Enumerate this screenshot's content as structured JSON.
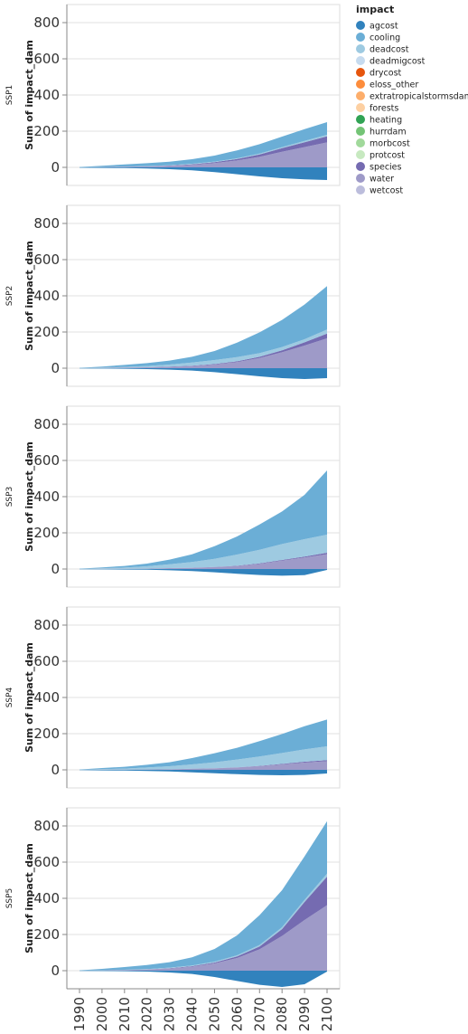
{
  "chart_data": {
    "type": "area",
    "stacked": true,
    "facet_row": "ssp",
    "x": [
      1990,
      2000,
      2010,
      2020,
      2030,
      2040,
      2050,
      2060,
      2070,
      2080,
      2090,
      2100
    ],
    "x_tick_labels": [
      "1990",
      "2000",
      "2010",
      "2020",
      "2030",
      "2040",
      "2050",
      "2060",
      "2070",
      "2080",
      "2090",
      "2100"
    ],
    "ylabel": "Sum of impact_dam",
    "ylim": [
      -100,
      900
    ],
    "y_ticks": [
      0,
      200,
      400,
      600,
      800
    ],
    "grid": true,
    "legend": {
      "title": "impact",
      "placement": "top-right",
      "entries": [
        {
          "name": "agcost",
          "color": "#3182bd"
        },
        {
          "name": "cooling",
          "color": "#6baed6"
        },
        {
          "name": "deadcost",
          "color": "#9ecae1"
        },
        {
          "name": "deadmigcost",
          "color": "#c6dbef"
        },
        {
          "name": "drycost",
          "color": "#e6550d"
        },
        {
          "name": "eloss_other",
          "color": "#fd8d3c"
        },
        {
          "name": "extratropicalstormsdam",
          "color": "#fdae6b"
        },
        {
          "name": "forests",
          "color": "#fdd0a2"
        },
        {
          "name": "heating",
          "color": "#31a354"
        },
        {
          "name": "hurrdam",
          "color": "#74c476"
        },
        {
          "name": "morbcost",
          "color": "#a1d99b"
        },
        {
          "name": "protcost",
          "color": "#c7e9c0"
        },
        {
          "name": "species",
          "color": "#756bb1"
        },
        {
          "name": "water",
          "color": "#9e9ac8"
        },
        {
          "name": "wetcost",
          "color": "#bcbddc"
        }
      ]
    },
    "panels": [
      {
        "label": "SSP1",
        "series": [
          {
            "name": "water",
            "values": [
              0,
              1,
              2,
              4,
              8,
              14,
              24,
              38,
              58,
              86,
              112,
              138
            ]
          },
          {
            "name": "species",
            "values": [
              0,
              0,
              1,
              1,
              2,
              3,
              5,
              8,
              13,
              20,
              27,
              34
            ]
          },
          {
            "name": "deadcost",
            "values": [
              0,
              1,
              1,
              2,
              2,
              3,
              3,
              4,
              5,
              6,
              7,
              8
            ]
          },
          {
            "name": "cooling",
            "values": [
              2,
              7,
              12,
              16,
              19,
              25,
              33,
              44,
              52,
              58,
              65,
              70
            ]
          },
          {
            "name": "agcost",
            "values": [
              -2,
              -3,
              -4,
              -6,
              -10,
              -16,
              -26,
              -38,
              -50,
              -60,
              -66,
              -70
            ]
          }
        ]
      },
      {
        "label": "SSP2",
        "series": [
          {
            "name": "water",
            "values": [
              0,
              1,
              2,
              4,
              7,
              12,
              20,
              34,
              56,
              88,
              125,
              165
            ]
          },
          {
            "name": "species",
            "values": [
              0,
              0,
              1,
              1,
              2,
              2,
              3,
              4,
              7,
              11,
              18,
              26
            ]
          },
          {
            "name": "deadcost",
            "values": [
              0,
              2,
              4,
              7,
              11,
              17,
              22,
              23,
              20,
              18,
              17,
              23
            ]
          },
          {
            "name": "cooling",
            "values": [
              2,
              6,
              11,
              16,
              22,
              32,
              50,
              80,
              115,
              150,
              192,
              240
            ]
          },
          {
            "name": "agcost",
            "values": [
              -1,
              -2,
              -3,
              -5,
              -8,
              -13,
              -22,
              -33,
              -45,
              -55,
              -60,
              -55
            ]
          }
        ]
      },
      {
        "label": "SSP3",
        "series": [
          {
            "name": "water",
            "values": [
              0,
              1,
              1,
              2,
              4,
              6,
              10,
              16,
              28,
              46,
              64,
              82
            ]
          },
          {
            "name": "species",
            "values": [
              0,
              0,
              0,
              0,
              1,
              1,
              1,
              2,
              3,
              4,
              5,
              8
            ]
          },
          {
            "name": "deadcost",
            "values": [
              0,
              3,
              7,
              13,
              21,
              32,
              45,
              62,
              75,
              88,
              96,
              100
            ]
          },
          {
            "name": "cooling",
            "values": [
              2,
              5,
              9,
              15,
              26,
              42,
              70,
              100,
              140,
              180,
              245,
              355
            ]
          },
          {
            "name": "agcost",
            "values": [
              -1,
              -2,
              -3,
              -4,
              -7,
              -11,
              -18,
              -26,
              -33,
              -37,
              -34,
              -5
            ]
          }
        ]
      },
      {
        "label": "SSP4",
        "series": [
          {
            "name": "water",
            "values": [
              0,
              1,
              1,
              2,
              3,
              5,
              8,
              13,
              20,
              30,
              40,
              48
            ]
          },
          {
            "name": "species",
            "values": [
              0,
              0,
              0,
              0,
              0,
              1,
              1,
              1,
              2,
              3,
              5,
              6
            ]
          },
          {
            "name": "deadcost",
            "values": [
              0,
              3,
              6,
              11,
              17,
              24,
              33,
              43,
              52,
              60,
              68,
              76
            ]
          },
          {
            "name": "cooling",
            "values": [
              2,
              6,
              10,
              15,
              22,
              35,
              50,
              65,
              85,
              105,
              128,
              148
            ]
          },
          {
            "name": "agcost",
            "values": [
              -1,
              -3,
              -4,
              -6,
              -9,
              -14,
              -19,
              -24,
              -28,
              -30,
              -28,
              -20
            ]
          }
        ]
      },
      {
        "label": "SSP5",
        "series": [
          {
            "name": "water",
            "values": [
              0,
              1,
              3,
              6,
              12,
              22,
              40,
              70,
              118,
              192,
              280,
              362
            ]
          },
          {
            "name": "species",
            "values": [
              0,
              0,
              1,
              1,
              2,
              3,
              5,
              9,
              16,
              38,
              100,
              158
            ]
          },
          {
            "name": "deadcost",
            "values": [
              0,
              1,
              1,
              2,
              3,
              4,
              5,
              6,
              8,
              10,
              12,
              16
            ]
          },
          {
            "name": "cooling",
            "values": [
              2,
              8,
              15,
              22,
              30,
              45,
              70,
              110,
              165,
              205,
              240,
              290
            ]
          },
          {
            "name": "agcost",
            "values": [
              -1,
              -2,
              -3,
              -5,
              -10,
              -18,
              -35,
              -57,
              -78,
              -90,
              -75,
              -5
            ]
          }
        ]
      }
    ]
  }
}
